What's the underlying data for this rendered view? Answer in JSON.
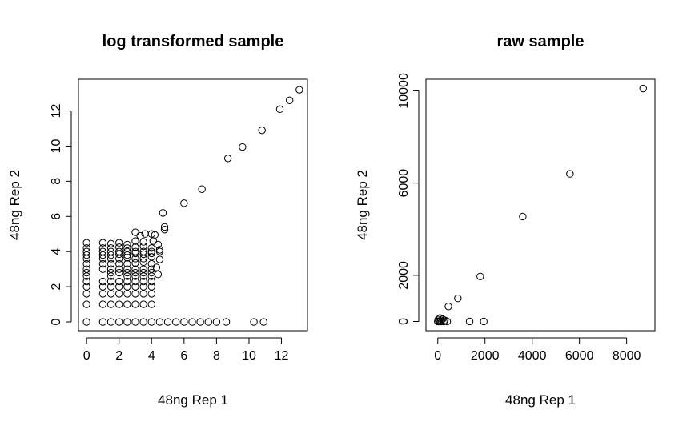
{
  "chart_data": [
    {
      "type": "scatter",
      "title": "log transformed sample",
      "xlabel": "48ng Rep 1",
      "ylabel": "48ng Rep 2",
      "xlim": [
        -0.5,
        13.6
      ],
      "ylim": [
        -0.5,
        13.8
      ],
      "xticks": [
        0,
        2,
        4,
        6,
        8,
        10,
        12
      ],
      "yticks": [
        0,
        2,
        4,
        6,
        8,
        10,
        12
      ],
      "marker": "open-circle",
      "grid": false,
      "legend": "none",
      "series": [
        {
          "points": [
            [
              13.1,
              13.2
            ],
            [
              12.5,
              12.6
            ],
            [
              11.9,
              12.1
            ],
            [
              10.8,
              10.9
            ],
            [
              9.6,
              9.95
            ],
            [
              8.7,
              9.3
            ],
            [
              7.1,
              7.55
            ],
            [
              6.0,
              6.75
            ],
            [
              4.7,
              6.2
            ],
            [
              4.8,
              5.4
            ],
            [
              4.8,
              5.25
            ],
            [
              3.0,
              5.1
            ],
            [
              3.6,
              5.0
            ],
            [
              4.0,
              5.0
            ],
            [
              4.2,
              4.95
            ],
            [
              3.3,
              4.9
            ],
            [
              0,
              4.5
            ],
            [
              1.0,
              4.5
            ],
            [
              1.5,
              4.45
            ],
            [
              2.0,
              4.5
            ],
            [
              2.5,
              4.4
            ],
            [
              3.0,
              4.6
            ],
            [
              3.5,
              4.55
            ],
            [
              4.1,
              4.6
            ],
            [
              4.4,
              4.4
            ],
            [
              0,
              4.2
            ],
            [
              1.0,
              4.2
            ],
            [
              1.5,
              4.2
            ],
            [
              2.0,
              4.25
            ],
            [
              2.5,
              4.2
            ],
            [
              3.0,
              4.25
            ],
            [
              3.5,
              4.3
            ],
            [
              4.0,
              4.2
            ],
            [
              4.5,
              4.1
            ],
            [
              0,
              4.0
            ],
            [
              1.0,
              4.0
            ],
            [
              1.5,
              4.0
            ],
            [
              2.0,
              4.0
            ],
            [
              2.5,
              4.0
            ],
            [
              3.0,
              4.0
            ],
            [
              3.5,
              4.0
            ],
            [
              4.0,
              4.0
            ],
            [
              4.5,
              4.0
            ],
            [
              0,
              3.8
            ],
            [
              1.0,
              3.8
            ],
            [
              1.5,
              3.8
            ],
            [
              2.0,
              3.85
            ],
            [
              2.5,
              3.8
            ],
            [
              3.0,
              3.9
            ],
            [
              3.5,
              3.85
            ],
            [
              4.0,
              3.9
            ],
            [
              0,
              3.6
            ],
            [
              1.0,
              3.6
            ],
            [
              1.5,
              3.6
            ],
            [
              2.0,
              3.6
            ],
            [
              2.5,
              3.65
            ],
            [
              3.0,
              3.6
            ],
            [
              3.5,
              3.6
            ],
            [
              4.0,
              3.7
            ],
            [
              4.5,
              3.55
            ],
            [
              0,
              3.3
            ],
            [
              1.0,
              3.3
            ],
            [
              1.5,
              3.3
            ],
            [
              2.0,
              3.3
            ],
            [
              2.5,
              3.3
            ],
            [
              3.0,
              3.35
            ],
            [
              3.5,
              3.4
            ],
            [
              4.0,
              3.3
            ],
            [
              0,
              3.0
            ],
            [
              1.0,
              3.0
            ],
            [
              1.5,
              3.0
            ],
            [
              2.0,
              3.0
            ],
            [
              2.5,
              3.0
            ],
            [
              3.0,
              3.0
            ],
            [
              3.5,
              3.0
            ],
            [
              4.0,
              3.0
            ],
            [
              4.3,
              3.1
            ],
            [
              0,
              2.8
            ],
            [
              1.5,
              2.8
            ],
            [
              2.0,
              2.8
            ],
            [
              2.5,
              2.8
            ],
            [
              3.0,
              2.8
            ],
            [
              3.5,
              2.8
            ],
            [
              4.0,
              2.8
            ],
            [
              4.4,
              2.7
            ],
            [
              0,
              2.6
            ],
            [
              1.5,
              2.6
            ],
            [
              2.5,
              2.6
            ],
            [
              3.0,
              2.6
            ],
            [
              3.5,
              2.6
            ],
            [
              4.0,
              2.6
            ],
            [
              0,
              2.3
            ],
            [
              1.0,
              2.3
            ],
            [
              1.5,
              2.3
            ],
            [
              2.0,
              2.3
            ],
            [
              2.5,
              2.3
            ],
            [
              3.0,
              2.3
            ],
            [
              3.5,
              2.3
            ],
            [
              4.0,
              2.3
            ],
            [
              0,
              2.0
            ],
            [
              1.0,
              2.0
            ],
            [
              1.5,
              2.0
            ],
            [
              2.0,
              2.0
            ],
            [
              2.5,
              2.0
            ],
            [
              3.0,
              2.0
            ],
            [
              3.5,
              2.0
            ],
            [
              4.0,
              2.0
            ],
            [
              0,
              1.6
            ],
            [
              1.0,
              1.6
            ],
            [
              1.5,
              1.6
            ],
            [
              2.0,
              1.6
            ],
            [
              2.5,
              1.6
            ],
            [
              3.0,
              1.6
            ],
            [
              3.5,
              1.6
            ],
            [
              4.0,
              1.6
            ],
            [
              0,
              1.0
            ],
            [
              1.0,
              1.0
            ],
            [
              1.5,
              1.0
            ],
            [
              2.0,
              1.0
            ],
            [
              2.5,
              1.0
            ],
            [
              3.0,
              1.0
            ],
            [
              3.5,
              1.0
            ],
            [
              4.0,
              1.0
            ],
            [
              0,
              0
            ],
            [
              1.0,
              0
            ],
            [
              1.5,
              0
            ],
            [
              2.0,
              0
            ],
            [
              2.5,
              0
            ],
            [
              3.0,
              0
            ],
            [
              3.5,
              0
            ],
            [
              4.0,
              0
            ],
            [
              4.5,
              0
            ],
            [
              5.0,
              0
            ],
            [
              5.5,
              0
            ],
            [
              6.0,
              0
            ],
            [
              6.5,
              0
            ],
            [
              7.0,
              0
            ],
            [
              7.5,
              0
            ],
            [
              8.0,
              0
            ],
            [
              8.6,
              0
            ],
            [
              10.3,
              0
            ],
            [
              10.9,
              0
            ]
          ]
        }
      ]
    },
    {
      "type": "scatter",
      "title": "raw sample",
      "xlabel": "48ng Rep 1",
      "ylabel": "48ng Rep 2",
      "xlim": [
        -500,
        9200
      ],
      "ylim": [
        -400,
        10500
      ],
      "xticks": [
        0,
        2000,
        4000,
        6000,
        8000
      ],
      "yticks": [
        0,
        2000,
        6000,
        10000
      ],
      "marker": "open-circle",
      "grid": false,
      "legend": "none",
      "series": [
        {
          "points": [
            [
              8700,
              10100
            ],
            [
              5600,
              6400
            ],
            [
              3600,
              4550
            ],
            [
              1800,
              1950
            ],
            [
              850,
              1000
            ],
            [
              450,
              650
            ],
            [
              1950,
              0
            ],
            [
              1350,
              0
            ],
            [
              400,
              0
            ],
            [
              300,
              50
            ],
            [
              200,
              100
            ],
            [
              150,
              50
            ],
            [
              100,
              150
            ],
            [
              50,
              0
            ],
            [
              0,
              0
            ],
            [
              20,
              80
            ],
            [
              80,
              20
            ],
            [
              250,
              0
            ],
            [
              120,
              0
            ]
          ]
        }
      ]
    }
  ]
}
